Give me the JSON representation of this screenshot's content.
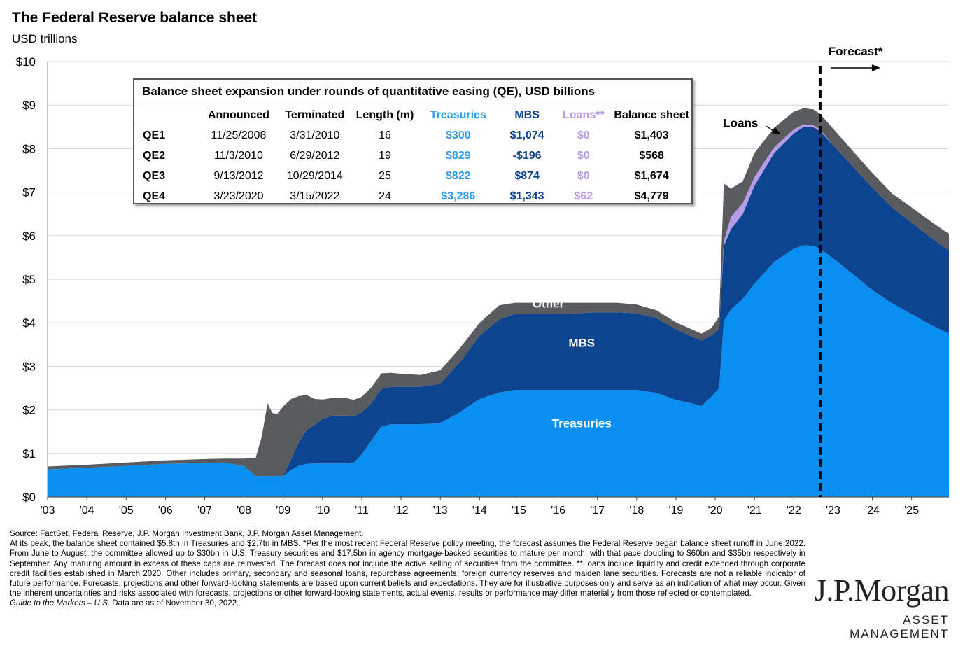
{
  "header": {
    "title": "The Federal Reserve balance sheet",
    "subtitle": "USD trillions"
  },
  "chart_data": {
    "type": "area",
    "stacked": true,
    "y_tick_labels": [
      "$0",
      "$1",
      "$2",
      "$3",
      "$4",
      "$5",
      "$6",
      "$7",
      "$8",
      "$9",
      "$10"
    ],
    "x_tick_labels": [
      "'03",
      "'04",
      "'05",
      "'06",
      "'07",
      "'08",
      "'09",
      "'10",
      "'11",
      "'12",
      "'13",
      "'14",
      "'15",
      "'16",
      "'17",
      "'18",
      "'19",
      "'20",
      "'21",
      "'22",
      "'23",
      "'24",
      "'25"
    ],
    "xlim": [
      2003.0,
      2025.95
    ],
    "ylim": [
      0,
      10
    ],
    "grid": true,
    "forecast_start": 2022.67,
    "forecast_label": "Forecast*",
    "x": [
      2003.0,
      2004.0,
      2005.0,
      2006.0,
      2007.0,
      2007.5,
      2008.0,
      2008.3,
      2008.45,
      2008.6,
      2008.72,
      2008.85,
      2009.0,
      2009.2,
      2009.4,
      2009.6,
      2009.8,
      2010.0,
      2010.3,
      2010.6,
      2010.8,
      2011.0,
      2011.25,
      2011.5,
      2011.75,
      2012.0,
      2012.5,
      2013.0,
      2013.5,
      2014.0,
      2014.5,
      2014.9,
      2015.5,
      2016.0,
      2017.0,
      2017.5,
      2018.0,
      2018.5,
      2019.0,
      2019.45,
      2019.65,
      2019.9,
      2020.1,
      2020.22,
      2020.4,
      2020.7,
      2021.0,
      2021.5,
      2022.0,
      2022.25,
      2022.5,
      2022.67,
      2023.0,
      2023.5,
      2024.0,
      2024.5,
      2025.0,
      2025.5,
      2025.95
    ],
    "series": [
      {
        "name": "Treasuries",
        "values": [
          0.63,
          0.67,
          0.71,
          0.76,
          0.78,
          0.79,
          0.71,
          0.48,
          0.48,
          0.48,
          0.48,
          0.48,
          0.48,
          0.62,
          0.72,
          0.76,
          0.77,
          0.77,
          0.77,
          0.77,
          0.79,
          0.98,
          1.3,
          1.62,
          1.67,
          1.67,
          1.67,
          1.7,
          1.95,
          2.25,
          2.4,
          2.46,
          2.46,
          2.46,
          2.46,
          2.46,
          2.46,
          2.39,
          2.23,
          2.14,
          2.09,
          2.3,
          2.5,
          4.05,
          4.3,
          4.55,
          4.9,
          5.4,
          5.7,
          5.78,
          5.77,
          5.7,
          5.48,
          5.12,
          4.75,
          4.45,
          4.2,
          3.95,
          3.75
        ]
      },
      {
        "name": "MBS",
        "values": [
          0.0,
          0.0,
          0.0,
          0.0,
          0.0,
          0.0,
          0.0,
          0.0,
          0.0,
          0.0,
          0.0,
          0.0,
          0.0,
          0.25,
          0.55,
          0.78,
          0.88,
          1.03,
          1.1,
          1.1,
          1.06,
          0.96,
          0.86,
          0.86,
          0.86,
          0.86,
          0.86,
          0.9,
          1.15,
          1.45,
          1.68,
          1.74,
          1.74,
          1.74,
          1.78,
          1.78,
          1.76,
          1.72,
          1.62,
          1.53,
          1.5,
          1.41,
          1.35,
          1.72,
          1.85,
          1.95,
          2.25,
          2.5,
          2.65,
          2.72,
          2.72,
          2.7,
          2.6,
          2.47,
          2.35,
          2.2,
          2.1,
          2.0,
          1.91
        ]
      },
      {
        "name": "Loans",
        "values": [
          0.0,
          0.0,
          0.0,
          0.0,
          0.0,
          0.0,
          0.0,
          0.0,
          0.0,
          0.0,
          0.0,
          0.0,
          0.0,
          0.0,
          0.0,
          0.0,
          0.0,
          0.0,
          0.0,
          0.0,
          0.0,
          0.0,
          0.0,
          0.0,
          0.0,
          0.0,
          0.0,
          0.0,
          0.0,
          0.0,
          0.0,
          0.0,
          0.0,
          0.0,
          0.0,
          0.0,
          0.0,
          0.0,
          0.0,
          0.0,
          0.0,
          0.0,
          0.0,
          0.1,
          0.28,
          0.25,
          0.2,
          0.13,
          0.09,
          0.06,
          0.05,
          0.04,
          0.0,
          0.0,
          0.0,
          0.0,
          0.0,
          0.0,
          0.0
        ]
      },
      {
        "name": "Other",
        "values": [
          0.07,
          0.07,
          0.08,
          0.08,
          0.09,
          0.09,
          0.17,
          0.42,
          0.9,
          1.67,
          1.45,
          1.43,
          1.6,
          1.38,
          1.05,
          0.8,
          0.6,
          0.44,
          0.41,
          0.4,
          0.38,
          0.36,
          0.36,
          0.36,
          0.32,
          0.3,
          0.27,
          0.31,
          0.32,
          0.3,
          0.32,
          0.26,
          0.26,
          0.26,
          0.22,
          0.22,
          0.2,
          0.18,
          0.16,
          0.16,
          0.16,
          0.17,
          0.3,
          1.33,
          0.65,
          0.5,
          0.55,
          0.45,
          0.41,
          0.37,
          0.36,
          0.36,
          0.38,
          0.36,
          0.34,
          0.32,
          0.35,
          0.37,
          0.38
        ]
      }
    ],
    "colors": {
      "Treasuries": "#0a8ef0",
      "MBS": "#0c4490",
      "Loans": "#b59be8",
      "Other": "#5a5b5e"
    },
    "area_labels": [
      {
        "text": "Treasuries",
        "x": 2016.6,
        "y": 1.6
      },
      {
        "text": "MBS",
        "x": 2016.6,
        "y": 3.45
      },
      {
        "text": "Other",
        "x": 2015.75,
        "y": 4.35
      }
    ],
    "callout": {
      "text": "Loans",
      "text_x": 2020.2,
      "text_y": 8.5,
      "arrow_to_x": 2021.7,
      "arrow_to_y": 8.3
    },
    "table": {
      "title": "Balance sheet expansion under rounds of quantitative easing (QE), USD billions",
      "columns": [
        "",
        "Announced",
        "Terminated",
        "Length (m)",
        "Treasuries",
        "MBS",
        "Loans**",
        "Balance sheet"
      ],
      "rows": [
        [
          "QE1",
          "11/25/2008",
          "3/31/2010",
          "16",
          "$300",
          "$1,074",
          "$0",
          "$1,403"
        ],
        [
          "QE2",
          "11/3/2010",
          "6/29/2012",
          "19",
          "$829",
          "-$196",
          "$0",
          "$568"
        ],
        [
          "QE3",
          "9/13/2012",
          "10/29/2014",
          "25",
          "$822",
          "$874",
          "$0",
          "$1,674"
        ],
        [
          "QE4",
          "3/23/2020",
          "3/15/2022",
          "24",
          "$3,286",
          "$1,343",
          "$62",
          "$4,779"
        ]
      ]
    }
  },
  "footnote": {
    "source": "Source: FactSet, Federal Reserve, J.P. Morgan Investment Bank, J.P. Morgan Asset Management.",
    "body": "At its peak, the balance sheet contained $5.8tn in Treasuries and $2.7tn in MBS. *Per the most recent Federal Reserve policy meeting, the forecast assumes the Federal Reserve began balance sheet runoff in June 2022. From June to August, the committee allowed up to $30bn in U.S. Treasury securities and $17.5bn in agency mortgage-backed securities to mature per month, with that pace doubling to $60bn and $35bn respectively in September. Any maturing amount in excess of these caps are reinvested. The forecast does not include the active selling of securities from the committee. **Loans include liquidity and credit extended through corporate credit facilities established in March 2020. Other includes primary, secondary and seasonal loans, repurchase agreements, foreign currency reserves and maiden lane securities. Forecasts are not a reliable indicator of future performance. Forecasts, projections and other forward-looking statements are based upon current beliefs and expectations. They are for illustrative purposes only and serve as an indication of what may occur. Given the inherent uncertainties and risks associated with forecasts, projections or other forward-looking statements, actual events, results or performance may differ materially from those reflected or contemplated.",
    "guide": "Guide to the Markets – U.S.",
    "date": "Data are as of November 30, 2022."
  },
  "logo": {
    "name": "J.P.Morgan",
    "sub": "ASSET MANAGEMENT"
  }
}
